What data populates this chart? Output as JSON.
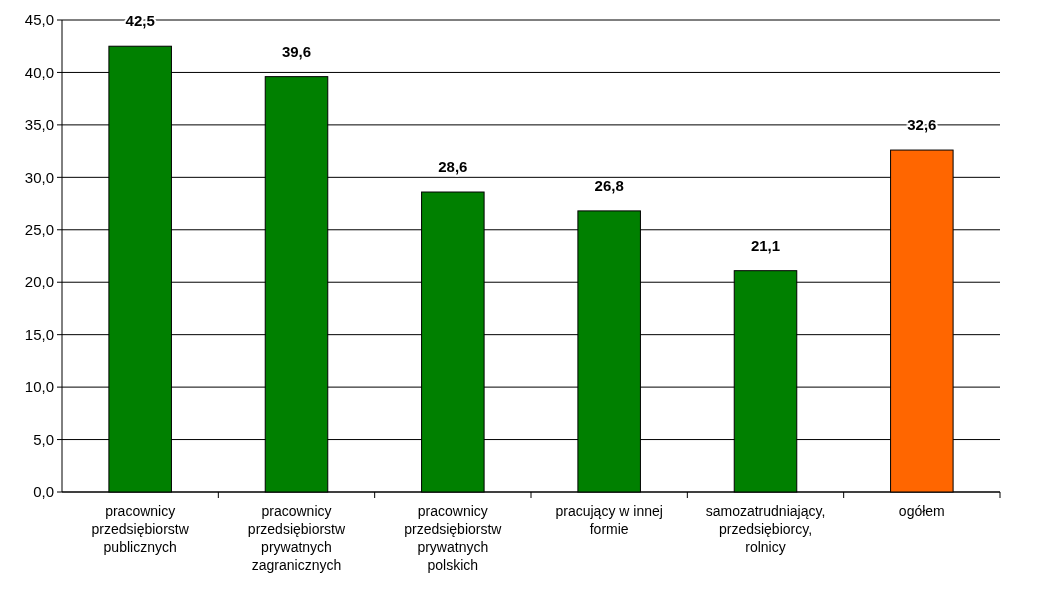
{
  "chart_data": {
    "type": "bar",
    "categories": [
      "pracownicy przedsiębiorstw publicznych",
      "pracownicy przedsiębiorstw prywatnych zagranicznych",
      "pracownicy przedsiębiorstw prywatnych polskich",
      "pracujący w innej formie",
      "samozatrudniający, przedsiębiorcy, rolnicy",
      "ogółem"
    ],
    "values": [
      42.5,
      39.6,
      28.6,
      26.8,
      21.1,
      32.6
    ],
    "colors": [
      "#008000",
      "#008000",
      "#008000",
      "#008000",
      "#008000",
      "#ff6600"
    ],
    "value_labels": [
      "42,5",
      "39,6",
      "28,6",
      "26,8",
      "21,1",
      "32,6"
    ],
    "ylim": [
      0,
      45
    ],
    "yticks": [
      {
        "value": 0,
        "label": "0,0"
      },
      {
        "value": 5,
        "label": "5,0"
      },
      {
        "value": 10,
        "label": "10,0"
      },
      {
        "value": 15,
        "label": "15,0"
      },
      {
        "value": 20,
        "label": "20,0"
      },
      {
        "value": 25,
        "label": "25,0"
      },
      {
        "value": 30,
        "label": "30,0"
      },
      {
        "value": 35,
        "label": "35,0"
      },
      {
        "value": 40,
        "label": "40,0"
      },
      {
        "value": 45,
        "label": "45,0"
      }
    ],
    "grid": "y"
  }
}
